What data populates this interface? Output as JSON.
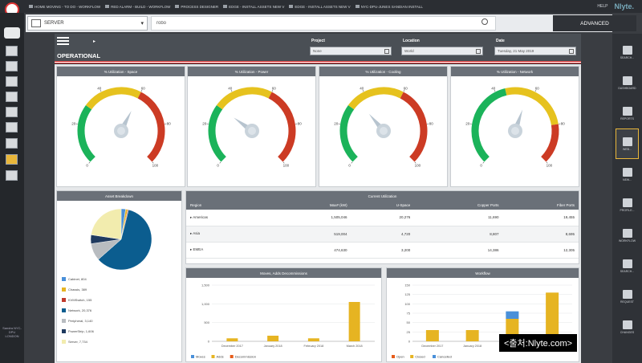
{
  "topbar": {
    "breadcrumbs": [
      "HOME MOVING - TO DO - WORKFLOW",
      "RED ALARM - BUILD - WORKFLOW",
      "PROCESS DESIGNER",
      "EDGE - INSTALL ASSETS NEW V",
      "EDGE - INSTALL ASSETS NEW V",
      "NYC-DPU-JUNES SANDIAN INSTALL"
    ],
    "help": "HELP",
    "brand": "Nlyte",
    "brand_suffix": ".",
    "footer_text": "Sandra NYC-DPU LONDON"
  },
  "search": {
    "scope": "SERVER",
    "query": "robo",
    "advanced_label": "ADVANCED"
  },
  "header": {
    "title": "OPERATIONAL",
    "project_label": "Project",
    "project_value": "None",
    "location_label": "Location",
    "location_value": "World",
    "date_label": "Date",
    "date_value": "Tuesday, 21 May 2019"
  },
  "gauges": [
    {
      "title": "% Utilization - Space",
      "value": 60,
      "ticks": [
        "0",
        "20",
        "40",
        "60",
        "80",
        "100"
      ]
    },
    {
      "title": "% Utilization - Power",
      "value": 30,
      "ticks": [
        "0",
        "20",
        "40",
        "60",
        "80",
        "100"
      ]
    },
    {
      "title": "% Utilization - Cooling",
      "value": 35,
      "ticks": [
        "0",
        "20",
        "40",
        "60",
        "80",
        "100"
      ]
    },
    {
      "title": "% Utilization - Network",
      "value": 57,
      "ticks": [
        "0",
        "20",
        "40",
        "60",
        "80",
        "100"
      ]
    }
  ],
  "asset_breakdown": {
    "title": "Asset Breakdown",
    "items": [
      {
        "label": "Cabinet, 804",
        "value": 804,
        "color": "#4a90d9"
      },
      {
        "label": "Chassis, 389",
        "value": 389,
        "color": "#e6b422"
      },
      {
        "label": "KVMSwitch, 155",
        "value": 155,
        "color": "#c0392b"
      },
      {
        "label": "Network, 20,376",
        "value": 20376,
        "color": "#0b5d8f"
      },
      {
        "label": "Peripheral, 3,140",
        "value": 3140,
        "color": "#b8bcc0"
      },
      {
        "label": "PowerStrip, 1,606",
        "value": 1606,
        "color": "#1f3a5f"
      },
      {
        "label": "Server, 7,734",
        "value": 7734,
        "color": "#f2ecae"
      }
    ]
  },
  "utilization_table": {
    "title": "Current Utilization",
    "headers": [
      "Region",
      "Max# (kW)",
      "U-Space",
      "Copper Ports",
      "Fiber Ports"
    ],
    "rows": [
      [
        "Americas",
        "1,505,046",
        "20,276",
        "11,690",
        "19,455"
      ],
      [
        "Asia",
        "519,004",
        "4,720",
        "8,807",
        "8,695"
      ],
      [
        "EMEA",
        "474,630",
        "3,200",
        "14,386",
        "12,305"
      ]
    ]
  },
  "moves_chart": {
    "title": "Moves, Adds Decommissions",
    "chart_data": {
      "type": "bar",
      "categories": [
        "December 2017",
        "January 2018",
        "February 2018",
        "March 2018"
      ],
      "series": [
        {
          "name": "Moves",
          "values": [
            0,
            0,
            0,
            0
          ],
          "color": "#4a90d9"
        },
        {
          "name": "Adds",
          "values": [
            80,
            150,
            80,
            1050
          ],
          "color": "#e6b422"
        },
        {
          "name": "Decommission",
          "values": [
            0,
            0,
            0,
            0
          ],
          "color": "#e65c1a"
        }
      ],
      "yticks": [
        "0",
        "500",
        "1,000",
        "1,500"
      ],
      "ylim": [
        0,
        1500
      ]
    }
  },
  "workflow_chart": {
    "title": "Workflow",
    "chart_data": {
      "type": "bar",
      "categories": [
        "December 2017",
        "January 2018",
        "February 2018",
        "March 2018"
      ],
      "series": [
        {
          "name": "Open",
          "values": [
            0,
            0,
            0,
            0
          ],
          "color": "#e65c1a"
        },
        {
          "name": "Closed",
          "values": [
            30,
            30,
            60,
            130
          ],
          "color": "#e6b422"
        },
        {
          "name": "Cancelled",
          "values": [
            0,
            0,
            20,
            0
          ],
          "color": "#4a90d9"
        }
      ],
      "stacked": true,
      "yticks": [
        "0",
        "25",
        "50",
        "75",
        "100",
        "125",
        "150"
      ],
      "ylim": [
        0,
        150
      ]
    }
  },
  "rightnav": [
    {
      "label": "SEARCH..."
    },
    {
      "label": "DASHBOARD"
    },
    {
      "label": "REPORTS"
    },
    {
      "label": "WEB..."
    },
    {
      "label": "NEW..."
    },
    {
      "label": "PROFILE..."
    },
    {
      "label": "WORKFLOW"
    },
    {
      "label": "SEARCH..."
    },
    {
      "label": "REQUEST"
    },
    {
      "label": "CHANGES"
    }
  ],
  "watermark": "<출처:Nlyte.com>"
}
